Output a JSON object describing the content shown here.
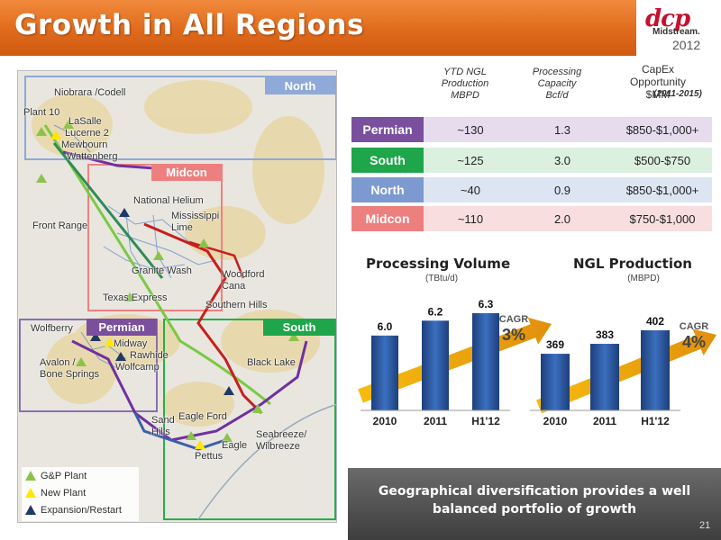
{
  "header": {
    "title": "Growth in All Regions"
  },
  "logo": {
    "mark": "dcp",
    "sub": "Midstream.",
    "year": "2012"
  },
  "map": {
    "regions": {
      "north": "North",
      "midcon": "Midcon",
      "permian": "Permian",
      "south": "South"
    },
    "labels": {
      "niobrara": "Niobrara /Codell",
      "plant10": "Plant 10",
      "lasalle": "LaSalle",
      "lucerne": "Lucerne 2",
      "mewbourn": "Mewbourn",
      "wattenberg": "Wattenberg",
      "national_helium": "National Helium",
      "mississippi_lime": "Mississippi\nLime",
      "front_range": "Front Range",
      "granite_wash": "Granite Wash",
      "woodford_cana": "Woodford\nCana",
      "texas_express": "Texas Express",
      "southern_hills": "Southern Hills",
      "wolfberry": "Wolfberry",
      "midway": "Midway",
      "rawhide": "Rawhide",
      "wolfcamp": "Wolfcamp",
      "avalon": "Avalon /\nBone Springs",
      "black_lake": "Black Lake",
      "sand_hills": "Sand\nHills",
      "eagle_ford": "Eagle Ford",
      "eagle": "Eagle",
      "pettus": "Pettus",
      "seabreeze": "Seabreeze/\nWilbreeze"
    },
    "legend": {
      "gp": "G&P Plant",
      "new": "New Plant",
      "expansion": "Expansion/Restart"
    },
    "colors": {
      "north": "#8fa9d8",
      "midcon": "#f08080",
      "permian": "#8a6fb0",
      "south": "#22b14c"
    }
  },
  "table": {
    "headers": {
      "ngl": "YTD NGL\nProduction\nMBPD",
      "proc": "Processing\nCapacity\nBcf/d",
      "capex_a": "CapEx\nOpportunity\n$MM",
      "capex_b": "(2011-2015)"
    },
    "rows": [
      {
        "name": "Permian",
        "ngl": "~130",
        "proc": "1.3",
        "capex": "$850-$1,000+",
        "color": "#7a4f9e",
        "bg": "#e6dcee"
      },
      {
        "name": "South",
        "ngl": "~125",
        "proc": "3.0",
        "capex": "$500-$750",
        "color": "#1fa64a",
        "bg": "#dcf0e0"
      },
      {
        "name": "North",
        "ngl": "~40",
        "proc": "0.9",
        "capex": "$850-$1,000+",
        "color": "#7d9ad0",
        "bg": "#dde5f3"
      },
      {
        "name": "Midcon",
        "ngl": "~110",
        "proc": "2.0",
        "capex": "$750-$1,000",
        "color": "#ee7f7f",
        "bg": "#f8dede"
      }
    ]
  },
  "chart_data": [
    {
      "type": "bar",
      "title": "Processing Volume",
      "subtitle": "(TBtu/d)",
      "categories": [
        "2010",
        "2011",
        "H1'12"
      ],
      "values": [
        6.0,
        6.2,
        6.3
      ],
      "value_labels": [
        "6.0",
        "6.2",
        "6.3"
      ],
      "cagr_label": "CAGR",
      "cagr_value": "3%"
    },
    {
      "type": "bar",
      "title": "NGL Production",
      "subtitle": "(MBPD)",
      "categories": [
        "2010",
        "2011",
        "H1'12"
      ],
      "values": [
        369,
        383,
        402
      ],
      "value_labels": [
        "369",
        "383",
        "402"
      ],
      "cagr_label": "CAGR",
      "cagr_value": "4%"
    }
  ],
  "footer": {
    "text": "Geographical diversification provides a well balanced portfolio of growth",
    "page": "21"
  }
}
